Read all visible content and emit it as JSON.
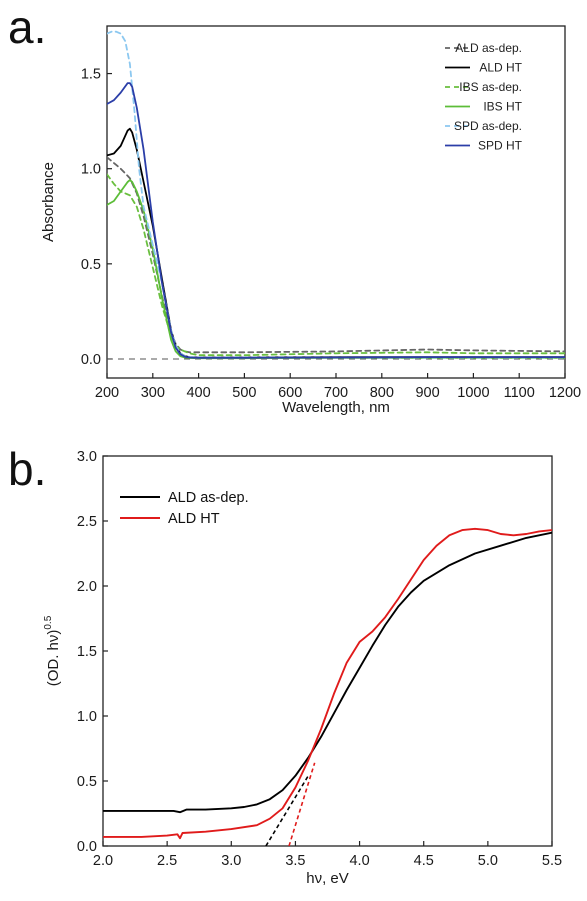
{
  "panels": {
    "a": "a.",
    "b": "b."
  },
  "chart_data": [
    {
      "type": "line",
      "xlabel": "Wavelength, nm",
      "ylabel": "Absorbance",
      "xlim": [
        200,
        1200
      ],
      "ylim": [
        -0.1,
        1.75
      ],
      "xticks": [
        200,
        300,
        400,
        500,
        600,
        700,
        800,
        900,
        1000,
        1100,
        1200
      ],
      "xtick_labels": [
        "200",
        "300",
        "400",
        "500",
        "600",
        "700",
        "800",
        "900",
        "1000",
        "1100",
        "1200"
      ],
      "yticks": [
        0.0,
        0.5,
        1.0,
        1.5
      ],
      "ytick_labels": [
        "0.0",
        "0.5",
        "1.0",
        "1.5"
      ],
      "legend_position": "top-right",
      "reference_line": {
        "y": 0.0,
        "style": "dashed",
        "color": "#555555"
      },
      "series": [
        {
          "name": "ALD as-dep.",
          "color": "#666666",
          "dash": true,
          "x": [
            200,
            215,
            230,
            250,
            265,
            280,
            300,
            320,
            340,
            350,
            360,
            370,
            380,
            400,
            500,
            700,
            900,
            1000,
            1200
          ],
          "y": [
            1.06,
            1.03,
            1.0,
            0.95,
            0.87,
            0.75,
            0.55,
            0.33,
            0.14,
            0.08,
            0.05,
            0.04,
            0.035,
            0.035,
            0.035,
            0.04,
            0.05,
            0.045,
            0.04
          ]
        },
        {
          "name": "ALD HT",
          "color": "#000000",
          "dash": false,
          "x": [
            200,
            215,
            230,
            245,
            250,
            255,
            265,
            280,
            300,
            320,
            340,
            350,
            360,
            370,
            380,
            400,
            500,
            700,
            900,
            1200
          ],
          "y": [
            1.07,
            1.08,
            1.12,
            1.2,
            1.21,
            1.19,
            1.1,
            0.93,
            0.7,
            0.42,
            0.15,
            0.07,
            0.03,
            0.015,
            0.01,
            0.008,
            0.008,
            0.01,
            0.01,
            0.01
          ]
        },
        {
          "name": "IBS as-dep.",
          "color": "#6abf3f",
          "dash": true,
          "x": [
            200,
            215,
            230,
            250,
            265,
            280,
            300,
            320,
            340,
            350,
            360,
            370,
            380,
            400,
            500,
            700,
            900,
            1000,
            1200
          ],
          "y": [
            0.97,
            0.92,
            0.88,
            0.86,
            0.8,
            0.68,
            0.48,
            0.28,
            0.12,
            0.07,
            0.05,
            0.04,
            0.03,
            0.02,
            0.02,
            0.03,
            0.035,
            0.03,
            0.03
          ]
        },
        {
          "name": "IBS HT",
          "color": "#5cbd38",
          "dash": false,
          "x": [
            200,
            215,
            230,
            245,
            250,
            255,
            265,
            280,
            300,
            320,
            340,
            350,
            360,
            370,
            380,
            400,
            500,
            700,
            900,
            1200
          ],
          "y": [
            0.81,
            0.83,
            0.88,
            0.93,
            0.94,
            0.93,
            0.88,
            0.78,
            0.58,
            0.32,
            0.1,
            0.04,
            0.015,
            0.008,
            0.005,
            0.004,
            0.004,
            0.006,
            0.006,
            0.006
          ]
        },
        {
          "name": "SPD as-dep.",
          "color": "#8cc8f0",
          "dash": true,
          "x": [
            200,
            210,
            220,
            230,
            240,
            250,
            260,
            270,
            280,
            300,
            320,
            340,
            350,
            360,
            370,
            380,
            400,
            500,
            700,
            900,
            1200
          ],
          "y": [
            1.71,
            1.72,
            1.72,
            1.71,
            1.67,
            1.55,
            1.3,
            1.0,
            0.8,
            0.6,
            0.4,
            0.15,
            0.07,
            0.03,
            0.015,
            0.01,
            0.008,
            0.008,
            0.008,
            0.008,
            0.008
          ]
        },
        {
          "name": "SPD HT",
          "color": "#2b3ea8",
          "dash": false,
          "x": [
            200,
            215,
            230,
            245,
            250,
            255,
            265,
            280,
            300,
            320,
            340,
            350,
            360,
            370,
            380,
            400,
            500,
            700,
            900,
            1200
          ],
          "y": [
            1.34,
            1.36,
            1.4,
            1.45,
            1.45,
            1.43,
            1.32,
            1.1,
            0.72,
            0.4,
            0.14,
            0.06,
            0.025,
            0.012,
            0.008,
            0.006,
            0.006,
            0.008,
            0.01,
            0.01
          ]
        }
      ]
    },
    {
      "type": "line",
      "xlabel": "hν, eV",
      "ylabel_main": "(OD. hν)",
      "ylabel_sup": "0.5",
      "xlim": [
        2.0,
        5.5
      ],
      "ylim": [
        0.0,
        3.0
      ],
      "xticks": [
        2.0,
        2.5,
        3.0,
        3.5,
        4.0,
        4.5,
        5.0,
        5.5
      ],
      "xtick_labels": [
        "2.0",
        "2.5",
        "3.0",
        "3.5",
        "4.0",
        "4.5",
        "5.0",
        "5.5"
      ],
      "yticks": [
        0.0,
        0.5,
        1.0,
        1.5,
        2.0,
        2.5,
        3.0
      ],
      "ytick_labels": [
        "0.0",
        "0.5",
        "1.0",
        "1.5",
        "2.0",
        "2.5",
        "3.0"
      ],
      "legend_position": "top-left",
      "series": [
        {
          "name": "ALD as-dep.",
          "color": "#000000",
          "dash": false,
          "x": [
            2.0,
            2.3,
            2.55,
            2.6,
            2.65,
            2.8,
            3.0,
            3.1,
            3.2,
            3.3,
            3.4,
            3.5,
            3.6,
            3.7,
            3.8,
            3.9,
            4.0,
            4.1,
            4.2,
            4.3,
            4.4,
            4.5,
            4.7,
            4.9,
            5.1,
            5.3,
            5.5
          ],
          "y": [
            0.27,
            0.27,
            0.27,
            0.26,
            0.28,
            0.28,
            0.29,
            0.3,
            0.32,
            0.36,
            0.43,
            0.54,
            0.68,
            0.84,
            1.02,
            1.2,
            1.37,
            1.54,
            1.7,
            1.84,
            1.95,
            2.04,
            2.16,
            2.25,
            2.31,
            2.37,
            2.41
          ]
        },
        {
          "name": "ALD HT",
          "color": "#e01b1b",
          "dash": false,
          "x": [
            2.0,
            2.3,
            2.5,
            2.58,
            2.6,
            2.62,
            2.8,
            3.0,
            3.2,
            3.3,
            3.4,
            3.5,
            3.6,
            3.7,
            3.8,
            3.9,
            4.0,
            4.1,
            4.2,
            4.3,
            4.4,
            4.5,
            4.6,
            4.7,
            4.8,
            4.9,
            5.0,
            5.1,
            5.2,
            5.3,
            5.4,
            5.5
          ],
          "y": [
            0.07,
            0.07,
            0.08,
            0.09,
            0.06,
            0.1,
            0.11,
            0.13,
            0.16,
            0.21,
            0.29,
            0.45,
            0.66,
            0.9,
            1.17,
            1.41,
            1.57,
            1.65,
            1.76,
            1.9,
            2.05,
            2.2,
            2.31,
            2.39,
            2.43,
            2.44,
            2.43,
            2.4,
            2.39,
            2.4,
            2.42,
            2.43
          ]
        }
      ],
      "tangents": [
        {
          "color": "#000000",
          "x": [
            3.27,
            3.6
          ],
          "y": [
            0.0,
            0.54
          ]
        },
        {
          "color": "#e01b1b",
          "x": [
            3.45,
            3.65
          ],
          "y": [
            0.0,
            0.64
          ]
        }
      ]
    }
  ]
}
